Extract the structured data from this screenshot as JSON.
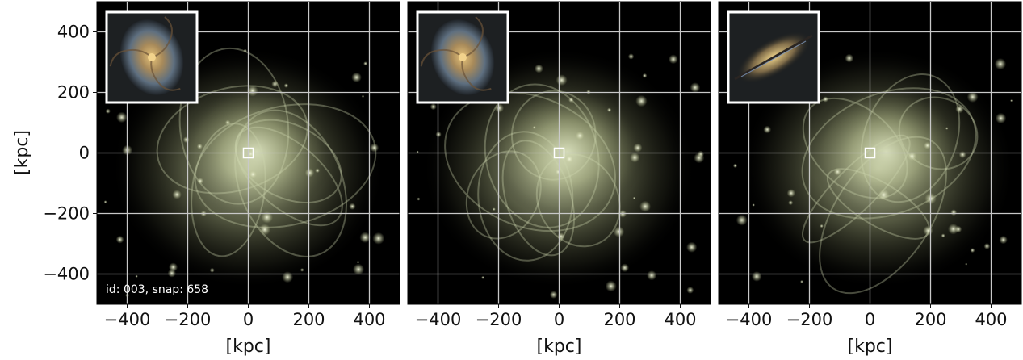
{
  "figure": {
    "y_label": "[kpc]",
    "x_label": "[kpc]",
    "caption": "id: 003, snap: 658",
    "x_tick_labels": [
      "−400",
      "−200",
      "0",
      "200",
      "400"
    ],
    "y_tick_labels": [
      "400",
      "200",
      "0",
      "−200",
      "−400"
    ],
    "background_color": "#000000",
    "grid_color": "#c8c8c8",
    "halo_color": "#cfd8b0",
    "panels": [
      {
        "inset": "face-on spiral galaxy",
        "inset_shape": "spiral"
      },
      {
        "inset": "face-on spiral galaxy",
        "inset_shape": "spiral"
      },
      {
        "inset": "edge-on disk galaxy",
        "inset_shape": "edge-on"
      }
    ]
  }
}
